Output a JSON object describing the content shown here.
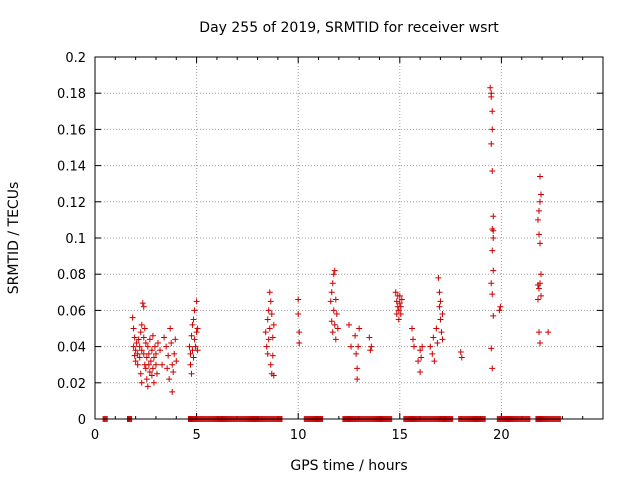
{
  "chart_data": {
    "type": "scatter",
    "title": "Day 255 of 2019, SRMTID for receiver wsrt",
    "xlabel": "GPS time / hours",
    "ylabel": "SRMTID / TECUs",
    "xlim": [
      0,
      25
    ],
    "ylim": [
      0,
      0.2
    ],
    "xticks": [
      "0",
      "5",
      "10",
      "15",
      "20"
    ],
    "yticks": [
      "0",
      "0.02",
      "0.04",
      "0.06",
      "0.08",
      "0.1",
      "0.12",
      "0.14",
      "0.16",
      "0.18",
      "0.2"
    ],
    "grid": true,
    "marker": "plus",
    "colors": {
      "points": "#cc0000",
      "grid": "#a0a0a0",
      "axes": "#000000"
    },
    "series": [
      {
        "values": [
          [
            1.85,
            0.056
          ],
          [
            1.9,
            0.05
          ],
          [
            1.95,
            0.045
          ],
          [
            1.9,
            0.04
          ],
          [
            1.95,
            0.035
          ],
          [
            2.0,
            0.032
          ],
          [
            2.0,
            0.038
          ],
          [
            2.05,
            0.042
          ],
          [
            2.1,
            0.036
          ],
          [
            2.1,
            0.03
          ],
          [
            2.15,
            0.044
          ],
          [
            2.2,
            0.04
          ],
          [
            2.2,
            0.034
          ],
          [
            2.25,
            0.048
          ],
          [
            2.25,
            0.025
          ],
          [
            2.3,
            0.038
          ],
          [
            2.3,
            0.052
          ],
          [
            2.3,
            0.02
          ],
          [
            2.35,
            0.064
          ],
          [
            2.4,
            0.062
          ],
          [
            2.4,
            0.045
          ],
          [
            2.4,
            0.036
          ],
          [
            2.45,
            0.03
          ],
          [
            2.45,
            0.05
          ],
          [
            2.5,
            0.042
          ],
          [
            2.5,
            0.028
          ],
          [
            2.55,
            0.034
          ],
          [
            2.55,
            0.022
          ],
          [
            2.6,
            0.04
          ],
          [
            2.6,
            0.018
          ],
          [
            2.65,
            0.036
          ],
          [
            2.65,
            0.03
          ],
          [
            2.7,
            0.026
          ],
          [
            2.7,
            0.044
          ],
          [
            2.75,
            0.032
          ],
          [
            2.8,
            0.038
          ],
          [
            2.8,
            0.024
          ],
          [
            2.85,
            0.046
          ],
          [
            2.85,
            0.028
          ],
          [
            2.9,
            0.034
          ],
          [
            2.9,
            0.02
          ],
          [
            2.95,
            0.04
          ],
          [
            3.0,
            0.03
          ],
          [
            3.0,
            0.036
          ],
          [
            3.05,
            0.025
          ],
          [
            3.1,
            0.042
          ],
          [
            3.2,
            0.038
          ],
          [
            3.3,
            0.03
          ],
          [
            3.4,
            0.045
          ],
          [
            3.5,
            0.04
          ],
          [
            3.55,
            0.028
          ],
          [
            3.6,
            0.035
          ],
          [
            3.65,
            0.022
          ],
          [
            3.7,
            0.05
          ],
          [
            3.75,
            0.042
          ],
          [
            3.8,
            0.03
          ],
          [
            3.8,
            0.015
          ],
          [
            3.85,
            0.026
          ],
          [
            3.9,
            0.036
          ],
          [
            3.95,
            0.044
          ],
          [
            4.0,
            0.032
          ],
          [
            4.65,
            0.04
          ],
          [
            4.7,
            0.03
          ],
          [
            4.7,
            0.036
          ],
          [
            4.75,
            0.046
          ],
          [
            4.75,
            0.025
          ],
          [
            4.8,
            0.038
          ],
          [
            4.8,
            0.052
          ],
          [
            4.85,
            0.034
          ],
          [
            4.85,
            0.055
          ],
          [
            4.9,
            0.044
          ],
          [
            4.9,
            0.06
          ],
          [
            4.95,
            0.04
          ],
          [
            5.0,
            0.048
          ],
          [
            5.0,
            0.065
          ],
          [
            5.05,
            0.038
          ],
          [
            5.05,
            0.05
          ],
          [
            8.4,
            0.048
          ],
          [
            8.45,
            0.04
          ],
          [
            8.5,
            0.036
          ],
          [
            8.5,
            0.055
          ],
          [
            8.55,
            0.044
          ],
          [
            8.55,
            0.06
          ],
          [
            8.6,
            0.05
          ],
          [
            8.6,
            0.07
          ],
          [
            8.65,
            0.03
          ],
          [
            8.65,
            0.065
          ],
          [
            8.7,
            0.025
          ],
          [
            8.7,
            0.058
          ],
          [
            8.75,
            0.035
          ],
          [
            8.75,
            0.045
          ],
          [
            8.8,
            0.052
          ],
          [
            8.8,
            0.024
          ],
          [
            10.0,
            0.066
          ],
          [
            10.0,
            0.058
          ],
          [
            10.05,
            0.048
          ],
          [
            10.05,
            0.042
          ],
          [
            11.6,
            0.065
          ],
          [
            11.65,
            0.07
          ],
          [
            11.65,
            0.054
          ],
          [
            11.7,
            0.075
          ],
          [
            11.7,
            0.048
          ],
          [
            11.75,
            0.08
          ],
          [
            11.75,
            0.06
          ],
          [
            11.8,
            0.082
          ],
          [
            11.8,
            0.052
          ],
          [
            11.85,
            0.066
          ],
          [
            11.85,
            0.044
          ],
          [
            11.9,
            0.058
          ],
          [
            11.95,
            0.05
          ],
          [
            12.5,
            0.052
          ],
          [
            12.6,
            0.04
          ],
          [
            12.8,
            0.046
          ],
          [
            12.85,
            0.036
          ],
          [
            12.9,
            0.028
          ],
          [
            12.9,
            0.022
          ],
          [
            12.95,
            0.04
          ],
          [
            13.0,
            0.05
          ],
          [
            13.5,
            0.045
          ],
          [
            13.55,
            0.038
          ],
          [
            13.6,
            0.04
          ],
          [
            14.8,
            0.07
          ],
          [
            14.85,
            0.065
          ],
          [
            14.85,
            0.058
          ],
          [
            14.9,
            0.062
          ],
          [
            14.9,
            0.068
          ],
          [
            14.95,
            0.055
          ],
          [
            14.95,
            0.06
          ],
          [
            15.0,
            0.064
          ],
          [
            15.0,
            0.068
          ],
          [
            15.05,
            0.058
          ],
          [
            15.05,
            0.062
          ],
          [
            15.1,
            0.066
          ],
          [
            15.6,
            0.05
          ],
          [
            15.65,
            0.044
          ],
          [
            15.7,
            0.04
          ],
          [
            15.9,
            0.032
          ],
          [
            16.0,
            0.038
          ],
          [
            16.0,
            0.026
          ],
          [
            16.05,
            0.034
          ],
          [
            16.1,
            0.04
          ],
          [
            16.5,
            0.04
          ],
          [
            16.6,
            0.036
          ],
          [
            16.65,
            0.045
          ],
          [
            16.7,
            0.032
          ],
          [
            16.8,
            0.05
          ],
          [
            16.85,
            0.042
          ],
          [
            16.9,
            0.078
          ],
          [
            16.95,
            0.07
          ],
          [
            16.95,
            0.062
          ],
          [
            17.0,
            0.065
          ],
          [
            17.0,
            0.055
          ],
          [
            17.05,
            0.048
          ],
          [
            17.1,
            0.058
          ],
          [
            17.1,
            0.044
          ],
          [
            18.0,
            0.037
          ],
          [
            18.05,
            0.034
          ],
          [
            19.45,
            0.183
          ],
          [
            19.5,
            0.178
          ],
          [
            19.5,
            0.18
          ],
          [
            19.55,
            0.17
          ],
          [
            19.55,
            0.16
          ],
          [
            19.5,
            0.152
          ],
          [
            19.55,
            0.137
          ],
          [
            19.6,
            0.112
          ],
          [
            19.55,
            0.105
          ],
          [
            19.6,
            0.104
          ],
          [
            19.6,
            0.1
          ],
          [
            19.55,
            0.093
          ],
          [
            19.6,
            0.082
          ],
          [
            19.5,
            0.075
          ],
          [
            19.55,
            0.069
          ],
          [
            19.6,
            0.057
          ],
          [
            19.5,
            0.039
          ],
          [
            19.55,
            0.028
          ],
          [
            19.9,
            0.06
          ],
          [
            19.95,
            0.062
          ],
          [
            21.8,
            0.11
          ],
          [
            21.85,
            0.115
          ],
          [
            21.9,
            0.12
          ],
          [
            21.9,
            0.134
          ],
          [
            21.95,
            0.124
          ],
          [
            21.85,
            0.102
          ],
          [
            21.9,
            0.097
          ],
          [
            21.95,
            0.08
          ],
          [
            21.8,
            0.074
          ],
          [
            21.85,
            0.072
          ],
          [
            21.9,
            0.075
          ],
          [
            21.95,
            0.068
          ],
          [
            21.8,
            0.066
          ],
          [
            21.85,
            0.048
          ],
          [
            21.9,
            0.042
          ],
          [
            22.3,
            0.048
          ]
        ]
      },
      {
        "zero_runs": [
          [
            0.4,
            0.6
          ],
          [
            1.6,
            1.8
          ],
          [
            4.6,
            9.2
          ],
          [
            10.3,
            11.2
          ],
          [
            12.2,
            14.6
          ],
          [
            15.2,
            17.6
          ],
          [
            17.9,
            19.2
          ],
          [
            19.8,
            21.4
          ],
          [
            21.7,
            22.9
          ]
        ]
      }
    ]
  }
}
